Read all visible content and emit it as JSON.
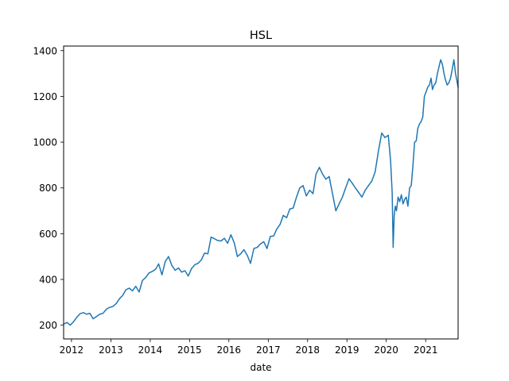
{
  "chart_data": {
    "type": "line",
    "title": "HSL",
    "xlabel": "date",
    "ylabel": "",
    "xlim": [
      "2011-10-20",
      "2021-10-29"
    ],
    "ylim": [
      140,
      1420
    ],
    "x_ticks": [
      "2012",
      "2013",
      "2014",
      "2015",
      "2016",
      "2017",
      "2018",
      "2019",
      "2020",
      "2021"
    ],
    "y_ticks": [
      200,
      400,
      600,
      800,
      1000,
      1200,
      1400
    ],
    "grid": false,
    "legend": "none",
    "colors": {
      "line": "#1f77b4"
    },
    "series": [
      {
        "x": [
          "2011-10-20",
          "2011-11-20",
          "2011-12-20",
          "2012-01-20",
          "2012-02-20",
          "2012-03-20",
          "2012-04-20",
          "2012-05-20",
          "2012-06-20",
          "2012-07-20",
          "2012-08-20",
          "2012-09-20",
          "2012-10-20",
          "2012-11-20",
          "2012-12-20",
          "2013-01-20",
          "2013-02-20",
          "2013-03-20",
          "2013-04-20",
          "2013-05-20",
          "2013-06-20",
          "2013-07-20",
          "2013-08-20",
          "2013-09-20",
          "2013-10-20",
          "2013-11-20",
          "2013-12-20",
          "2014-01-20",
          "2014-02-20",
          "2014-03-20",
          "2014-04-20",
          "2014-05-20",
          "2014-06-20",
          "2014-07-20",
          "2014-08-20",
          "2014-09-20",
          "2014-10-20",
          "2014-11-20",
          "2014-12-20",
          "2015-01-20",
          "2015-02-20",
          "2015-03-20",
          "2015-04-20",
          "2015-05-20",
          "2015-06-20",
          "2015-07-20",
          "2015-08-20",
          "2015-09-20",
          "2015-10-20",
          "2015-11-20",
          "2015-12-20",
          "2016-01-20",
          "2016-02-20",
          "2016-03-20",
          "2016-04-20",
          "2016-05-20",
          "2016-06-20",
          "2016-07-20",
          "2016-08-20",
          "2016-09-20",
          "2016-10-20",
          "2016-11-20",
          "2016-12-20",
          "2017-01-20",
          "2017-02-20",
          "2017-03-20",
          "2017-04-20",
          "2017-05-20",
          "2017-06-20",
          "2017-07-20",
          "2017-08-20",
          "2017-09-20",
          "2017-10-20",
          "2017-11-20",
          "2017-12-20",
          "2018-01-20",
          "2018-02-20",
          "2018-03-20",
          "2018-04-20",
          "2018-05-20",
          "2018-06-20",
          "2018-07-20",
          "2018-08-20",
          "2018-09-20",
          "2018-10-20",
          "2018-11-20",
          "2018-12-20",
          "2019-01-20",
          "2019-02-20",
          "2019-03-20",
          "2019-04-20",
          "2019-05-20",
          "2019-06-20",
          "2019-07-20",
          "2019-08-20",
          "2019-09-20",
          "2019-10-20",
          "2019-11-20",
          "2019-12-20",
          "2020-01-20",
          "2020-02-10",
          "2020-02-25",
          "2020-03-05",
          "2020-03-15",
          "2020-03-25",
          "2020-04-05",
          "2020-04-20",
          "2020-05-05",
          "2020-05-20",
          "2020-06-05",
          "2020-06-20",
          "2020-07-05",
          "2020-07-20",
          "2020-08-05",
          "2020-08-20",
          "2020-09-05",
          "2020-09-20",
          "2020-10-05",
          "2020-10-20",
          "2020-11-05",
          "2020-11-20",
          "2020-12-05",
          "2020-12-20",
          "2021-01-05",
          "2021-01-20",
          "2021-02-05",
          "2021-02-20",
          "2021-03-05",
          "2021-03-20",
          "2021-04-05",
          "2021-04-20",
          "2021-05-05",
          "2021-05-20",
          "2021-06-05",
          "2021-06-20",
          "2021-07-05",
          "2021-07-20",
          "2021-08-05",
          "2021-08-20",
          "2021-09-05",
          "2021-09-20",
          "2021-10-05",
          "2021-10-29"
        ],
        "y": [
          205,
          212,
          200,
          215,
          235,
          250,
          255,
          248,
          252,
          228,
          238,
          248,
          252,
          270,
          278,
          282,
          295,
          315,
          330,
          355,
          362,
          350,
          370,
          345,
          395,
          408,
          428,
          435,
          445,
          468,
          420,
          478,
          500,
          462,
          440,
          450,
          432,
          438,
          415,
          448,
          465,
          470,
          485,
          515,
          512,
          585,
          578,
          570,
          568,
          580,
          558,
          595,
          560,
          500,
          512,
          530,
          505,
          470,
          535,
          540,
          555,
          565,
          535,
          588,
          590,
          620,
          640,
          680,
          670,
          708,
          712,
          760,
          800,
          810,
          765,
          790,
          775,
          860,
          890,
          860,
          838,
          850,
          775,
          700,
          730,
          760,
          800,
          840,
          820,
          800,
          780,
          760,
          790,
          810,
          830,
          870,
          960,
          1040,
          1020,
          1030,
          920,
          780,
          540,
          680,
          720,
          700,
          760,
          740,
          770,
          730,
          750,
          760,
          720,
          800,
          810,
          900,
          1000,
          1005,
          1060,
          1080,
          1090,
          1110,
          1200,
          1220,
          1240,
          1250,
          1280,
          1230,
          1250,
          1260,
          1300,
          1330,
          1360,
          1340,
          1300,
          1270,
          1250,
          1260,
          1280,
          1320,
          1360,
          1300,
          1240
        ]
      }
    ]
  }
}
